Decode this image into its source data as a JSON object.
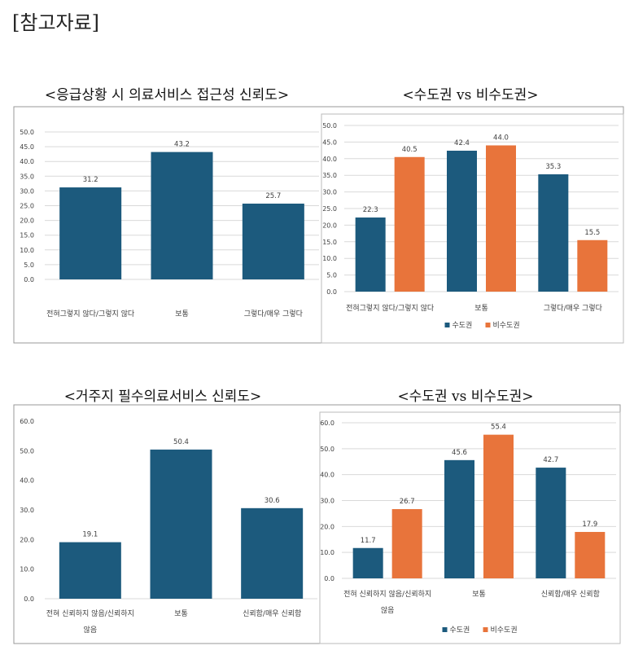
{
  "page_title": "[참고자료]",
  "colors": {
    "capital": "#1c5a7d",
    "non_capital": "#e8743b",
    "grid": "#d9d9d9",
    "text": "#404040"
  },
  "chart_data": [
    {
      "type": "bar",
      "title": "<응급상황 시 의료서비스 접근성 신뢰도>",
      "categories": [
        "전혀그렇지 않다/그렇지 않다",
        "보통",
        "그렇다/매우 그렇다"
      ],
      "series": [
        {
          "values": [
            31.2,
            43.2,
            25.7
          ],
          "color": "#1c5a7d"
        }
      ],
      "ylim": [
        0,
        50
      ],
      "ytick_step": 5,
      "tick_format": "0.0",
      "grid": true,
      "legend": "none"
    },
    {
      "type": "bar",
      "title": "<수도권 vs 비수도권>",
      "categories": [
        "전혀그렇지 않다/그렇지 않다",
        "보통",
        "그렇다/매우 그렇다"
      ],
      "series": [
        {
          "name": "수도권",
          "values": [
            22.3,
            42.4,
            35.3
          ],
          "color": "#1c5a7d"
        },
        {
          "name": "비수도권",
          "values": [
            40.5,
            44.0,
            15.5
          ],
          "color": "#e8743b"
        }
      ],
      "ylim": [
        0,
        50
      ],
      "ytick_step": 5,
      "tick_format": "0.0",
      "grid": true,
      "legend": "bottom"
    },
    {
      "type": "bar",
      "title": "<거주지 필수의료서비스 신뢰도>",
      "categories": [
        "전혀 신뢰하지 않음/신뢰하지\n않음",
        "보통",
        "신뢰함/매우 신뢰함"
      ],
      "series": [
        {
          "values": [
            19.1,
            50.4,
            30.6
          ],
          "color": "#1c5a7d"
        }
      ],
      "ylim": [
        0,
        60
      ],
      "ytick_step": 10,
      "tick_format": "0.0",
      "grid": false,
      "legend": "none"
    },
    {
      "type": "bar",
      "title": "<수도권 vs 비수도권>",
      "categories": [
        "전혀 신뢰하지 않음/신뢰하지\n않음",
        "보통",
        "신뢰함/매우 신뢰함"
      ],
      "series": [
        {
          "name": "수도권",
          "values": [
            11.7,
            45.6,
            42.7
          ],
          "color": "#1c5a7d"
        },
        {
          "name": "비수도권",
          "values": [
            26.7,
            55.4,
            17.9
          ],
          "color": "#e8743b"
        }
      ],
      "ylim": [
        0,
        60
      ],
      "ytick_step": 10,
      "tick_format": "0.0",
      "grid": true,
      "legend": "bottom"
    }
  ]
}
